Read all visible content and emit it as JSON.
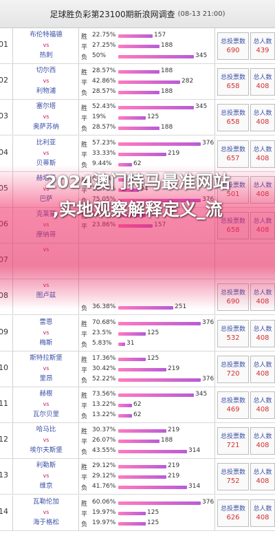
{
  "header": {
    "title": "足球胜负彩第23100期新浪网调查",
    "date": "(08-13 21:00)"
  },
  "labels": {
    "vs": "vs",
    "win": "胜",
    "draw": "平",
    "loss": "负",
    "total_votes": "总投票数",
    "total_people": "总人数"
  },
  "headline": {
    "line1": "2024澳门特马最准网站",
    "line2": ",实地观察解释定义_流"
  },
  "matches": [
    {
      "idx": "01",
      "home": "布伦特福德",
      "away": "热刺",
      "win_pct": "22.75%",
      "win": 157,
      "draw_pct": "27.25%",
      "draw": 188,
      "loss_pct": "50%",
      "loss": 345,
      "total_votes": "690",
      "total_people": "439"
    },
    {
      "idx": "02",
      "home": "切尔西",
      "away": "利物浦",
      "win_pct": "28.57%",
      "win": 188,
      "draw_pct": "42.86%",
      "draw": 282,
      "loss_pct": "28.57%",
      "loss": 188,
      "total_votes": "658",
      "total_people": "408"
    },
    {
      "idx": "03",
      "home": "塞尔塔",
      "away": "奥萨苏纳",
      "win_pct": "52.43%",
      "win": 345,
      "draw_pct": "19%",
      "draw": 125,
      "loss_pct": "28.57%",
      "loss": 188,
      "total_votes": "658",
      "total_people": "408"
    },
    {
      "idx": "04",
      "home": "比利亚",
      "away": "贝蒂斯",
      "win_pct": "57.23%",
      "win": 376,
      "draw_pct": "33.33%",
      "draw": 219,
      "loss_pct": "9.44%",
      "loss": 62,
      "total_votes": "657",
      "total_people": "408"
    },
    {
      "idx": "05",
      "home": "赫塔菲",
      "away": "巴萨",
      "win_pct": "6.19%",
      "win": 31,
      "draw_pct": "18.76%",
      "draw": 94,
      "loss_pct": "75.05%",
      "loss": 376,
      "total_votes": "501",
      "total_people": "408"
    },
    {
      "idx": "06",
      "home": "克莱蒙",
      "away": "摩纳哥",
      "win_pct": "19%",
      "win": 125,
      "draw_pct": "23.86%",
      "draw": 157,
      "loss_pct": "",
      "loss": null,
      "total_votes": "658",
      "total_people": "408"
    },
    {
      "idx": "07",
      "home": "",
      "away": "",
      "win_pct": "",
      "win": null,
      "draw_pct": "",
      "draw": null,
      "loss_pct": "",
      "loss": null,
      "total_votes": "",
      "total_people": ""
    },
    {
      "idx": "08",
      "home": "",
      "away": "图卢兹",
      "win_pct": "",
      "win": null,
      "draw_pct": "",
      "draw": null,
      "loss_pct": "36.38%",
      "loss": 251,
      "total_votes": "690",
      "total_people": "408"
    },
    {
      "idx": "09",
      "home": "雷恩",
      "away": "梅斯",
      "win_pct": "70.68%",
      "win": 376,
      "draw_pct": "23.5%",
      "draw": 125,
      "loss_pct": "5.83%",
      "loss": 31,
      "total_votes": "532",
      "total_people": "408"
    },
    {
      "idx": "10",
      "home": "斯特拉斯堡",
      "away": "里昂",
      "win_pct": "17.36%",
      "win": 125,
      "draw_pct": "30.42%",
      "draw": 219,
      "loss_pct": "52.22%",
      "loss": 376,
      "total_votes": "720",
      "total_people": "408"
    },
    {
      "idx": "11",
      "home": "赫根",
      "away": "瓦尔贝里",
      "win_pct": "73.56%",
      "win": 345,
      "draw_pct": "13.22%",
      "draw": 62,
      "loss_pct": "13.22%",
      "loss": 62,
      "total_votes": "469",
      "total_people": "408"
    },
    {
      "idx": "12",
      "home": "哈马比",
      "away": "埃尔夫斯堡",
      "win_pct": "30.37%",
      "win": 219,
      "draw_pct": "26.07%",
      "draw": 188,
      "loss_pct": "43.55%",
      "loss": 314,
      "total_votes": "721",
      "total_people": "408"
    },
    {
      "idx": "13",
      "home": "利勒斯",
      "away": "维京",
      "win_pct": "29.12%",
      "win": 219,
      "draw_pct": "29.12%",
      "draw": 219,
      "loss_pct": "41.76%",
      "loss": 314,
      "total_votes": "752",
      "total_people": "408"
    },
    {
      "idx": "14",
      "home": "瓦勒伦加",
      "away": "海于格松",
      "win_pct": "60.06%",
      "win": 376,
      "draw_pct": "19.97%",
      "draw": 125,
      "loss_pct": "19.97%",
      "loss": 125,
      "total_votes": "626",
      "total_people": "408"
    }
  ]
}
